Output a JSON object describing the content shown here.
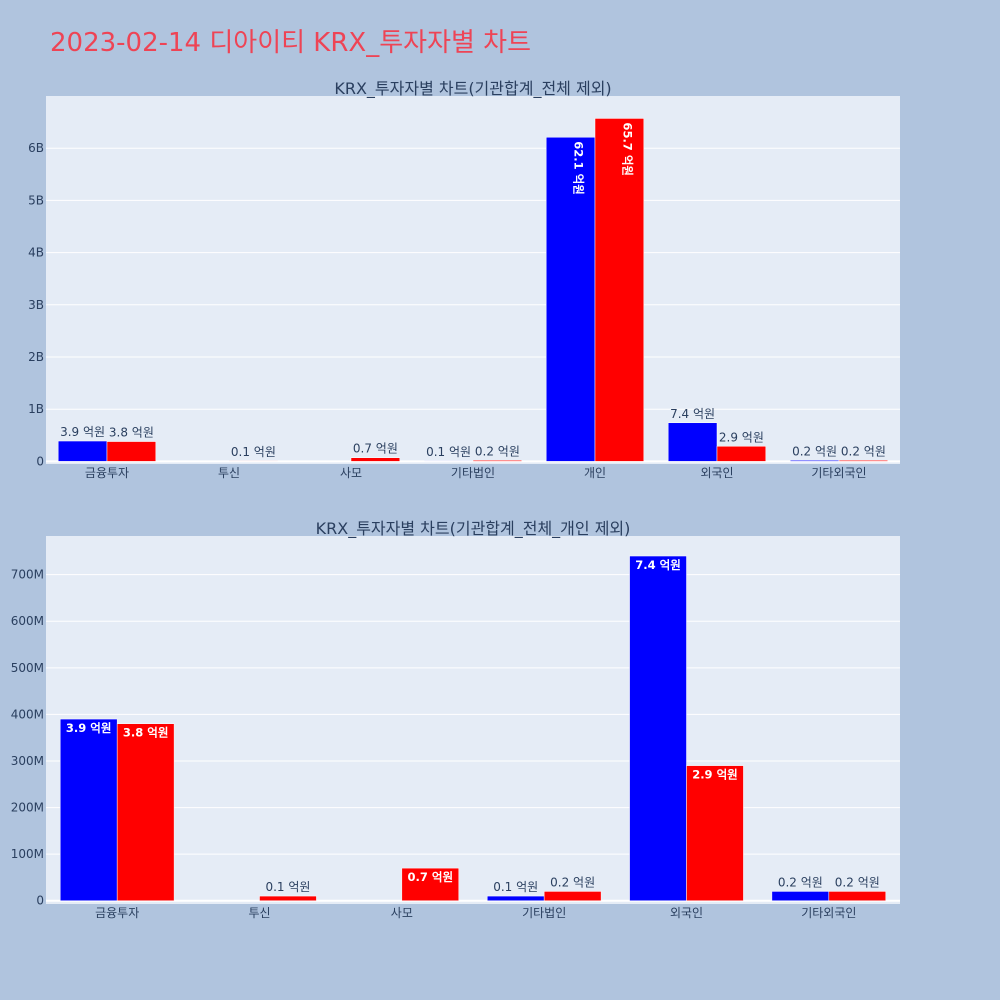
{
  "title": "2023-02-14 디아이티 KRX_투자자별 차트",
  "colors": {
    "background": "#b0c4de",
    "plot_bg": "#e5ecf6",
    "grid": "#ffffff",
    "title": "#ee4455",
    "series1": "#0000ff",
    "series2": "#ff0000"
  },
  "chart_data": [
    {
      "type": "bar",
      "title": "KRX_투자자별 차트(기관합계_전체 제외)",
      "categories": [
        "금융투자",
        "투신",
        "사모",
        "기타법인",
        "개인",
        "외국인",
        "기타외국인"
      ],
      "series": [
        {
          "color": "#0000ff",
          "values": [
            390000000,
            0,
            0,
            10000000,
            6210000000,
            740000000,
            20000000
          ],
          "labels": [
            "3.9 억원",
            "",
            "",
            "0.1 억원",
            "62.1 억원",
            "7.4 억원",
            "0.2 억원"
          ]
        },
        {
          "color": "#ff0000",
          "values": [
            380000000,
            10000000,
            70000000,
            20000000,
            6570000000,
            290000000,
            20000000
          ],
          "labels": [
            "3.8 억원",
            "0.1 억원",
            "0.7 억원",
            "0.2 억원",
            "65.7 억원",
            "2.9 억원",
            "0.2 억원"
          ]
        }
      ],
      "ylim": [
        -50000000,
        7000000000
      ],
      "yticks": [
        0,
        1000000000,
        2000000000,
        3000000000,
        4000000000,
        5000000000,
        6000000000
      ],
      "ytick_labels": [
        "0",
        "1B",
        "2B",
        "3B",
        "4B",
        "5B",
        "6B"
      ]
    },
    {
      "type": "bar",
      "title": "KRX_투자자별 차트(기관합계_전체_개인 제외)",
      "categories": [
        "금융투자",
        "투신",
        "사모",
        "기타법인",
        "외국인",
        "기타외국인"
      ],
      "series": [
        {
          "color": "#0000ff",
          "values": [
            390000000,
            0,
            0,
            10000000,
            740000000,
            20000000
          ],
          "labels": [
            "3.9 억원",
            "",
            "",
            "0.1 억원",
            "7.4 억원",
            "0.2 억원"
          ]
        },
        {
          "color": "#ff0000",
          "values": [
            380000000,
            10000000,
            70000000,
            20000000,
            290000000,
            20000000
          ],
          "labels": [
            "3.8 억원",
            "0.1 억원",
            "0.7 억원",
            "0.2 억원",
            "2.9 억원",
            "0.2 억원"
          ]
        }
      ],
      "ylim": [
        -7000000,
        783000000
      ],
      "yticks": [
        0,
        100000000,
        200000000,
        300000000,
        400000000,
        500000000,
        600000000,
        700000000
      ],
      "ytick_labels": [
        "0",
        "100M",
        "200M",
        "300M",
        "400M",
        "500M",
        "600M",
        "700M"
      ]
    }
  ]
}
